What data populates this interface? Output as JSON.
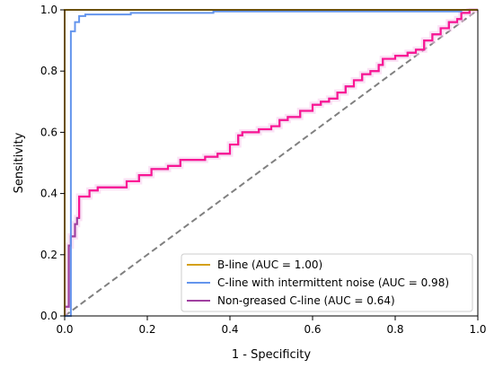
{
  "chart_data": {
    "type": "line",
    "title": "",
    "xlabel": "1 - Specificity",
    "ylabel": "Sensitivity",
    "xlim": [
      0.0,
      1.0
    ],
    "ylim": [
      0.0,
      1.0
    ],
    "xticks": [
      0.0,
      0.2,
      0.4,
      0.6,
      0.8,
      1.0
    ],
    "yticks": [
      0.0,
      0.2,
      0.4,
      0.6,
      0.8,
      1.0
    ],
    "tick_labels_x": [
      "0.0",
      "0.2",
      "0.4",
      "0.6",
      "0.8",
      "1.0"
    ],
    "tick_labels_y": [
      "0.0",
      "0.2",
      "0.4",
      "0.6",
      "0.8",
      "1.0"
    ],
    "grid": false,
    "legend_position": "bottom-right",
    "reference_line": {
      "style": "dashed",
      "color": "#808080",
      "points": [
        [
          0,
          0
        ],
        [
          1,
          1
        ]
      ]
    },
    "series": [
      {
        "name": "B-line (AUC = 1.00)",
        "color": "#d4a017",
        "points": [
          [
            0.0,
            0.0
          ],
          [
            0.0,
            1.0
          ],
          [
            1.0,
            1.0
          ]
        ]
      },
      {
        "name": "C-line with intermittent noise (AUC = 0.98)",
        "color": "#6495ed",
        "points": [
          [
            0.0,
            0.0
          ],
          [
            0.015,
            0.0
          ],
          [
            0.015,
            0.93
          ],
          [
            0.025,
            0.93
          ],
          [
            0.025,
            0.96
          ],
          [
            0.035,
            0.96
          ],
          [
            0.035,
            0.98
          ],
          [
            0.05,
            0.98
          ],
          [
            0.05,
            0.985
          ],
          [
            0.16,
            0.985
          ],
          [
            0.16,
            0.99
          ],
          [
            0.36,
            0.99
          ],
          [
            0.36,
            0.995
          ],
          [
            0.96,
            0.995
          ],
          [
            0.96,
            1.0
          ],
          [
            1.0,
            1.0
          ]
        ]
      },
      {
        "name": "Non-greased C-line (AUC = 0.64)",
        "color": "#a040a0",
        "points": [
          [
            0.0,
            0.0
          ],
          [
            0.0,
            0.03
          ],
          [
            0.01,
            0.03
          ],
          [
            0.01,
            0.23
          ],
          [
            0.015,
            0.23
          ],
          [
            0.015,
            0.26
          ],
          [
            0.025,
            0.26
          ],
          [
            0.025,
            0.3
          ],
          [
            0.03,
            0.3
          ],
          [
            0.03,
            0.32
          ],
          [
            0.035,
            0.32
          ],
          [
            0.035,
            0.39
          ],
          [
            0.06,
            0.39
          ],
          [
            0.06,
            0.41
          ],
          [
            0.08,
            0.41
          ],
          [
            0.08,
            0.42
          ],
          [
            0.15,
            0.42
          ],
          [
            0.15,
            0.44
          ],
          [
            0.18,
            0.44
          ],
          [
            0.18,
            0.46
          ],
          [
            0.21,
            0.46
          ],
          [
            0.21,
            0.48
          ],
          [
            0.25,
            0.48
          ],
          [
            0.25,
            0.49
          ],
          [
            0.28,
            0.49
          ],
          [
            0.28,
            0.51
          ],
          [
            0.34,
            0.51
          ],
          [
            0.34,
            0.52
          ],
          [
            0.37,
            0.52
          ],
          [
            0.37,
            0.53
          ],
          [
            0.4,
            0.53
          ],
          [
            0.4,
            0.56
          ],
          [
            0.42,
            0.56
          ],
          [
            0.42,
            0.59
          ],
          [
            0.43,
            0.59
          ],
          [
            0.43,
            0.6
          ],
          [
            0.47,
            0.6
          ],
          [
            0.47,
            0.61
          ],
          [
            0.5,
            0.61
          ],
          [
            0.5,
            0.62
          ],
          [
            0.52,
            0.62
          ],
          [
            0.52,
            0.64
          ],
          [
            0.54,
            0.64
          ],
          [
            0.54,
            0.65
          ],
          [
            0.57,
            0.65
          ],
          [
            0.57,
            0.67
          ],
          [
            0.6,
            0.67
          ],
          [
            0.6,
            0.69
          ],
          [
            0.62,
            0.69
          ],
          [
            0.62,
            0.7
          ],
          [
            0.64,
            0.7
          ],
          [
            0.64,
            0.71
          ],
          [
            0.66,
            0.71
          ],
          [
            0.66,
            0.73
          ],
          [
            0.68,
            0.73
          ],
          [
            0.68,
            0.75
          ],
          [
            0.7,
            0.75
          ],
          [
            0.7,
            0.77
          ],
          [
            0.72,
            0.77
          ],
          [
            0.72,
            0.79
          ],
          [
            0.74,
            0.79
          ],
          [
            0.74,
            0.8
          ],
          [
            0.76,
            0.8
          ],
          [
            0.76,
            0.82
          ],
          [
            0.77,
            0.82
          ],
          [
            0.77,
            0.84
          ],
          [
            0.8,
            0.84
          ],
          [
            0.8,
            0.85
          ],
          [
            0.83,
            0.85
          ],
          [
            0.83,
            0.86
          ],
          [
            0.85,
            0.86
          ],
          [
            0.85,
            0.87
          ],
          [
            0.87,
            0.87
          ],
          [
            0.87,
            0.9
          ],
          [
            0.89,
            0.9
          ],
          [
            0.89,
            0.92
          ],
          [
            0.91,
            0.92
          ],
          [
            0.91,
            0.94
          ],
          [
            0.93,
            0.94
          ],
          [
            0.93,
            0.96
          ],
          [
            0.95,
            0.96
          ],
          [
            0.95,
            0.97
          ],
          [
            0.96,
            0.97
          ],
          [
            0.96,
            0.99
          ],
          [
            0.98,
            0.99
          ],
          [
            0.98,
            1.0
          ],
          [
            1.0,
            1.0
          ]
        ]
      }
    ],
    "overlay_color": "#ff1493"
  }
}
